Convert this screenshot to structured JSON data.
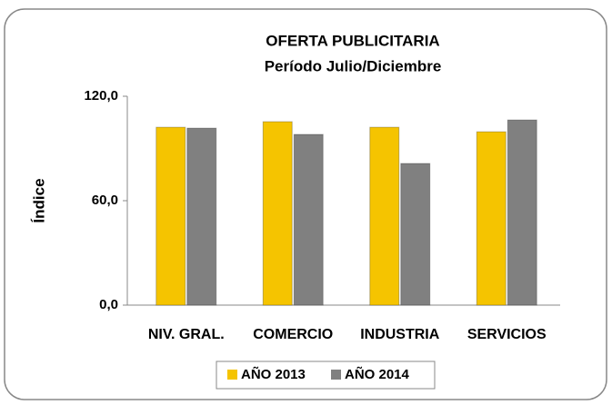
{
  "chart_data": {
    "type": "bar",
    "title": "OFERTA PUBLICITARIA",
    "subtitle": "Período Julio/Diciembre",
    "y_label": "Índice",
    "categories": [
      "NIV. GRAL.",
      "COMERCIO",
      "INDUSTRIA",
      "SERVICIOS"
    ],
    "series": [
      {
        "name": "AÑO 2013",
        "color": "#f5c400",
        "values": [
          102.2,
          105.4,
          102.2,
          99.6
        ]
      },
      {
        "name": "AÑO 2014",
        "color": "#808080",
        "values": [
          101.7,
          98.1,
          81.4,
          106.4
        ]
      }
    ],
    "ylim": [
      0,
      120
    ],
    "yticks": [
      {
        "value": 0,
        "label": "0,0"
      },
      {
        "value": 60,
        "label": "60,0"
      },
      {
        "value": 120,
        "label": "120,0"
      }
    ],
    "legend": "bottom"
  }
}
